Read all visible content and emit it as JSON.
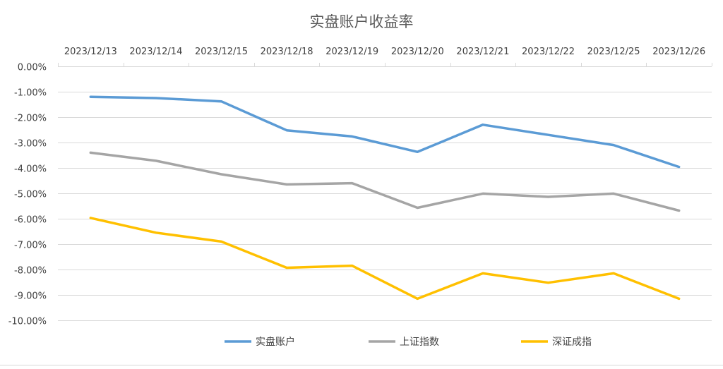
{
  "chart_data": {
    "type": "line",
    "title": "实盘账户收益率",
    "categories": [
      "2023/12/13",
      "2023/12/14",
      "2023/12/15",
      "2023/12/18",
      "2023/12/19",
      "2023/12/20",
      "2023/12/21",
      "2023/12/22",
      "2023/12/25",
      "2023/12/26"
    ],
    "y_tick_labels": [
      "0.00%",
      "-1.00%",
      "-2.00%",
      "-3.00%",
      "-4.00%",
      "-5.00%",
      "-6.00%",
      "-7.00%",
      "-8.00%",
      "-9.00%",
      "-10.00%"
    ],
    "ylim": [
      -10,
      0
    ],
    "y_unit": "%",
    "grid": true,
    "x_axis_position": "top",
    "legend_position": "bottom",
    "series": [
      {
        "name": "实盘账户",
        "color": "#5b9bd5",
        "values": [
          -1.2,
          -1.25,
          -1.38,
          -2.52,
          -2.76,
          -3.37,
          -2.3,
          -2.7,
          -3.1,
          -3.96
        ]
      },
      {
        "name": "上证指数",
        "color": "#a5a5a5",
        "values": [
          -3.4,
          -3.72,
          -4.25,
          -4.65,
          -4.6,
          -5.57,
          -5.01,
          -5.14,
          -5.01,
          -5.68
        ]
      },
      {
        "name": "深证成指",
        "color": "#ffc000",
        "values": [
          -5.97,
          -6.55,
          -6.9,
          -7.93,
          -7.85,
          -9.15,
          -8.15,
          -8.52,
          -8.15,
          -9.15
        ]
      }
    ]
  }
}
